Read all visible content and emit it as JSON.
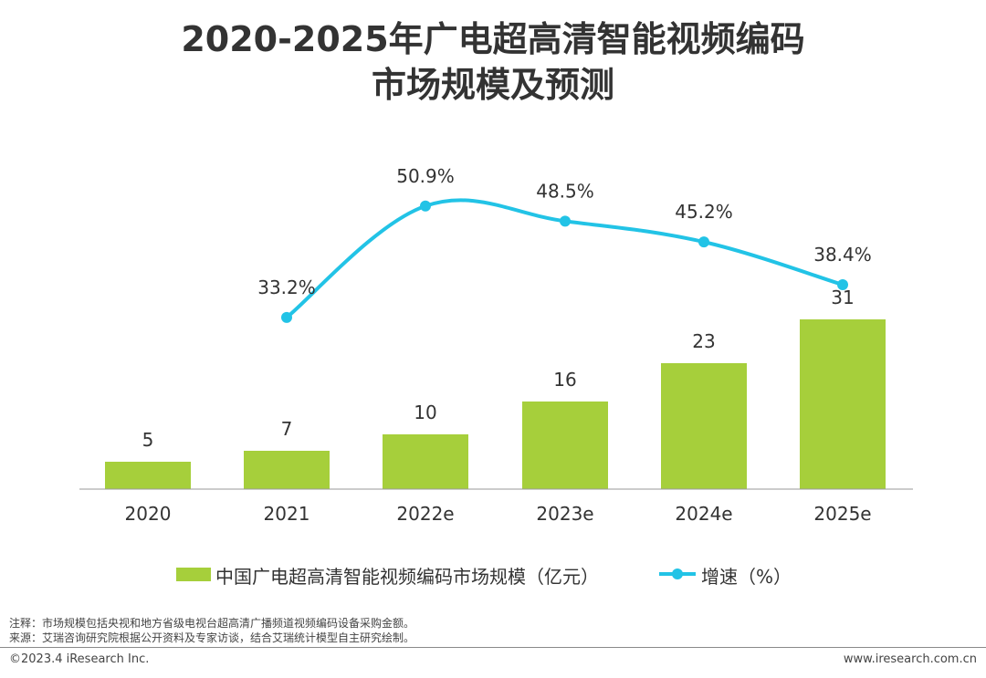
{
  "title": {
    "line1": "2020-2025年广电超高清智能视频编码",
    "line2": "市场规模及预测"
  },
  "legend": {
    "bar_label": "中国广电超高清智能视频编码市场规模（亿元）",
    "line_label": "增速（%）"
  },
  "colors": {
    "bar": "#a6cf3b",
    "line": "#22c3e6",
    "text": "#333333",
    "axis": "#999999"
  },
  "chart_data": {
    "type": "bar",
    "title": "2020-2025年广电超高清智能视频编码市场规模及预测",
    "categories": [
      "2020",
      "2021",
      "2022e",
      "2023e",
      "2024e",
      "2025e"
    ],
    "series": [
      {
        "name": "中国广电超高清智能视频编码市场规模（亿元）",
        "type": "bar",
        "values": [
          5,
          7,
          10,
          16,
          23,
          31
        ],
        "labels": [
          "5",
          "7",
          "10",
          "16",
          "23",
          "31"
        ]
      },
      {
        "name": "增速（%）",
        "type": "line",
        "values": [
          null,
          33.2,
          50.9,
          48.5,
          45.2,
          38.4
        ],
        "labels": [
          null,
          "33.2%",
          "50.9%",
          "48.5%",
          "45.2%",
          "38.4%"
        ]
      }
    ],
    "xlabel": "",
    "ylabel": "",
    "grid": false,
    "legend_position": "bottom"
  },
  "notes": {
    "note1": "注释：市场规模包括央视和地方省级电视台超高清广播频道视频编码设备采购金额。",
    "note2": "来源：艾瑞咨询研究院根据公开资料及专家访谈，结合艾瑞统计模型自主研究绘制。"
  },
  "footer": {
    "left": "©2023.4 iResearch Inc.",
    "right": "www.iresearch.com.cn"
  }
}
